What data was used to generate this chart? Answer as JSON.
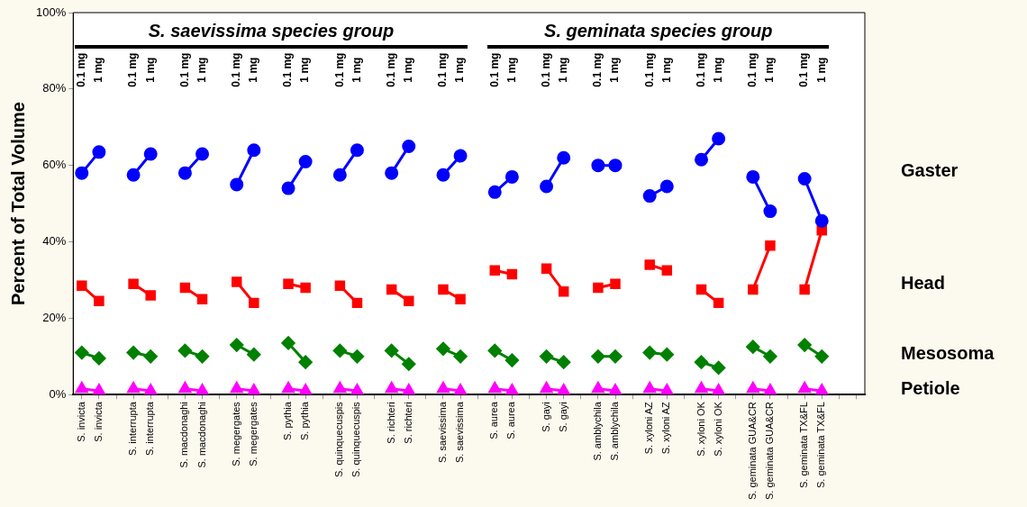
{
  "chart_data": {
    "type": "line",
    "ylabel": "Percent of Total Volume",
    "categories": [
      "S. invicta",
      "S. invicta",
      null,
      "S. interrupta",
      "S. interrupta",
      null,
      "S. macdonaghi",
      "S. macdonaghi",
      null,
      "S. megergates",
      "S. megergates",
      null,
      "S. pythia",
      "S. pythia",
      null,
      "S. quinquecuspis",
      "S. quinquecuspis",
      null,
      "S. richteri",
      "S. richteri",
      null,
      "S. saevissima",
      "S. saevissima",
      null,
      "S. aurea",
      "S. aurea",
      null,
      "S. gayi",
      "S. gayi",
      null,
      "S. amblychila",
      "S. amblychila",
      null,
      "S. xyloni AZ",
      "S. xyloni AZ",
      null,
      "S. xyloni OK",
      "S. xyloni OK",
      null,
      "S. geminata GUA&CR",
      "S. geminata GUA&CR",
      null,
      "S. geminata TX&FL",
      "S. geminata TX&FL",
      null,
      null
    ],
    "series": [
      {
        "name": "Gaster",
        "color": "#0000ff",
        "marker": "circle",
        "values": [
          58,
          63.5,
          null,
          57.5,
          63,
          null,
          58,
          63,
          null,
          55,
          64,
          null,
          54,
          61,
          null,
          57.5,
          64,
          null,
          58,
          65,
          null,
          57.5,
          62.5,
          null,
          53,
          57,
          null,
          54.5,
          62,
          null,
          60,
          60,
          null,
          52,
          54.5,
          null,
          61.5,
          67,
          null,
          57,
          48,
          null,
          56.5,
          45.5,
          null,
          null
        ]
      },
      {
        "name": "Head",
        "color": "#ff0000",
        "marker": "square",
        "values": [
          28.5,
          24.5,
          null,
          29,
          26,
          null,
          28,
          25,
          null,
          29.5,
          24,
          null,
          29,
          28,
          null,
          28.5,
          24,
          null,
          27.5,
          24.5,
          null,
          27.5,
          25,
          null,
          32.5,
          31.5,
          null,
          33,
          27,
          null,
          28,
          29,
          null,
          34,
          32.5,
          null,
          27.5,
          24,
          null,
          27.5,
          39,
          null,
          27.5,
          43,
          null,
          null
        ]
      },
      {
        "name": "Mesosoma",
        "color": "#008000",
        "marker": "diamond",
        "values": [
          11,
          9.5,
          null,
          11,
          10,
          null,
          11.5,
          10,
          null,
          13,
          10.5,
          null,
          13.5,
          8.5,
          null,
          11.5,
          10,
          null,
          11.5,
          8,
          null,
          12,
          10,
          null,
          11.5,
          9,
          null,
          10,
          8.5,
          null,
          10,
          10,
          null,
          11,
          10.5,
          null,
          8.5,
          7,
          null,
          12.5,
          10,
          null,
          13,
          10,
          null,
          null
        ]
      },
      {
        "name": "Petiole",
        "color": "#ff00ff",
        "marker": "triangle",
        "values": [
          1.5,
          1,
          null,
          1.5,
          1,
          null,
          1.5,
          1,
          null,
          1.5,
          1,
          null,
          1.5,
          1,
          null,
          1.5,
          1,
          null,
          1.5,
          1,
          null,
          1.5,
          1,
          null,
          1.5,
          1,
          null,
          1.5,
          1,
          null,
          1.5,
          1,
          null,
          1.5,
          1,
          null,
          1.5,
          1,
          null,
          1.5,
          1,
          null,
          1.5,
          1,
          null,
          null
        ]
      }
    ],
    "ylim": [
      0,
      100
    ],
    "yticks": [
      {
        "value": 0,
        "label": "0%"
      },
      {
        "value": 20,
        "label": "20%"
      },
      {
        "value": 40,
        "label": "40%"
      },
      {
        "value": 60,
        "label": "60%"
      },
      {
        "value": 80,
        "label": "80%"
      },
      {
        "value": 100,
        "label": "100%"
      }
    ],
    "grid": false,
    "legend": false,
    "line_style": "solid",
    "annotations": [
      "S. saevissima species group",
      "S. geminata species group",
      "0.1 mg",
      "1 mg",
      "0.1 mg",
      "1 mg",
      "0.1 mg",
      "1 mg",
      "0.1 mg",
      "1 mg",
      "0.1 mg",
      "1 mg",
      "0.1 mg",
      "1 mg",
      "0.1 mg",
      "1 mg",
      "0.1 mg",
      "1 mg",
      "0.1 mg",
      "1 mg",
      "0.1 mg",
      "1 mg",
      "0.1 mg",
      "1 mg",
      "0.1 mg",
      "1 mg",
      "0.1 mg",
      "1 mg",
      "0.1 mg",
      "1 mg",
      "0.1 mg",
      "1 mg"
    ]
  }
}
